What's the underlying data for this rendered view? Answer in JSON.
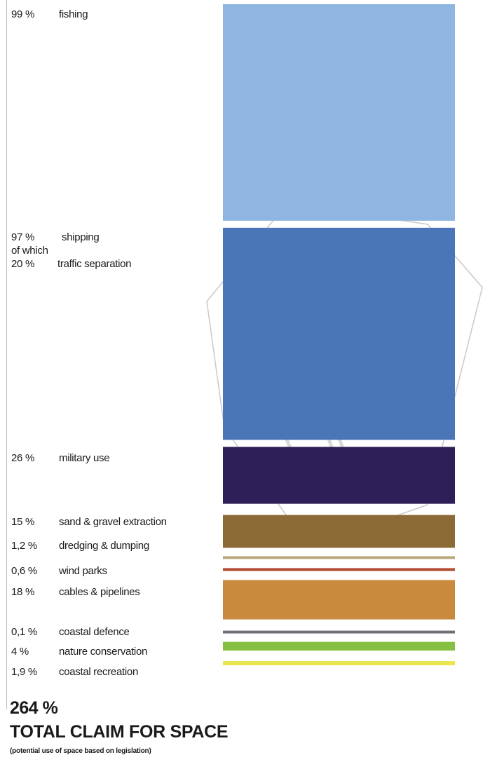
{
  "chart_data": {
    "type": "bar",
    "orientation": "stacked-vertical-blocks",
    "series": [
      {
        "name": "fishing",
        "label": "99 %",
        "value": 99,
        "color": "#8fb6e0"
      },
      {
        "name": "shipping",
        "label": "97 %",
        "value": 97,
        "color": "#4a75b6"
      },
      {
        "name": "military use",
        "label": "26 %",
        "value": 26,
        "color": "#2d1f57"
      },
      {
        "name": "sand & gravel extraction",
        "label": "15 %",
        "value": 15,
        "color": "#8c6a35"
      },
      {
        "name": "dredging & dumping",
        "label": "1,2 %",
        "value": 1.2,
        "color": "#b9a77e"
      },
      {
        "name": "wind parks",
        "label": "0,6 %",
        "value": 0.6,
        "color": "#b14a2e"
      },
      {
        "name": "cables & pipelines",
        "label": "18 %",
        "value": 18,
        "color": "#c98a3d"
      },
      {
        "name": "coastal defence",
        "label": "0,1 %",
        "value": 0.1,
        "color": "#6f6f78"
      },
      {
        "name": "nature conservation",
        "label": "4 %",
        "value": 4,
        "color": "#86c043"
      },
      {
        "name": "coastal recreation",
        "label": "1,9 %",
        "value": 1.9,
        "color": "#e8e64c"
      }
    ],
    "sub_item": {
      "prefix": "of which",
      "label": "20 %",
      "name": "traffic separation",
      "value": 20
    },
    "total": {
      "label": "264 %",
      "title": "TOTAL CLAIM FOR SPACE",
      "note": "(potential use of space based on legislation)"
    }
  }
}
